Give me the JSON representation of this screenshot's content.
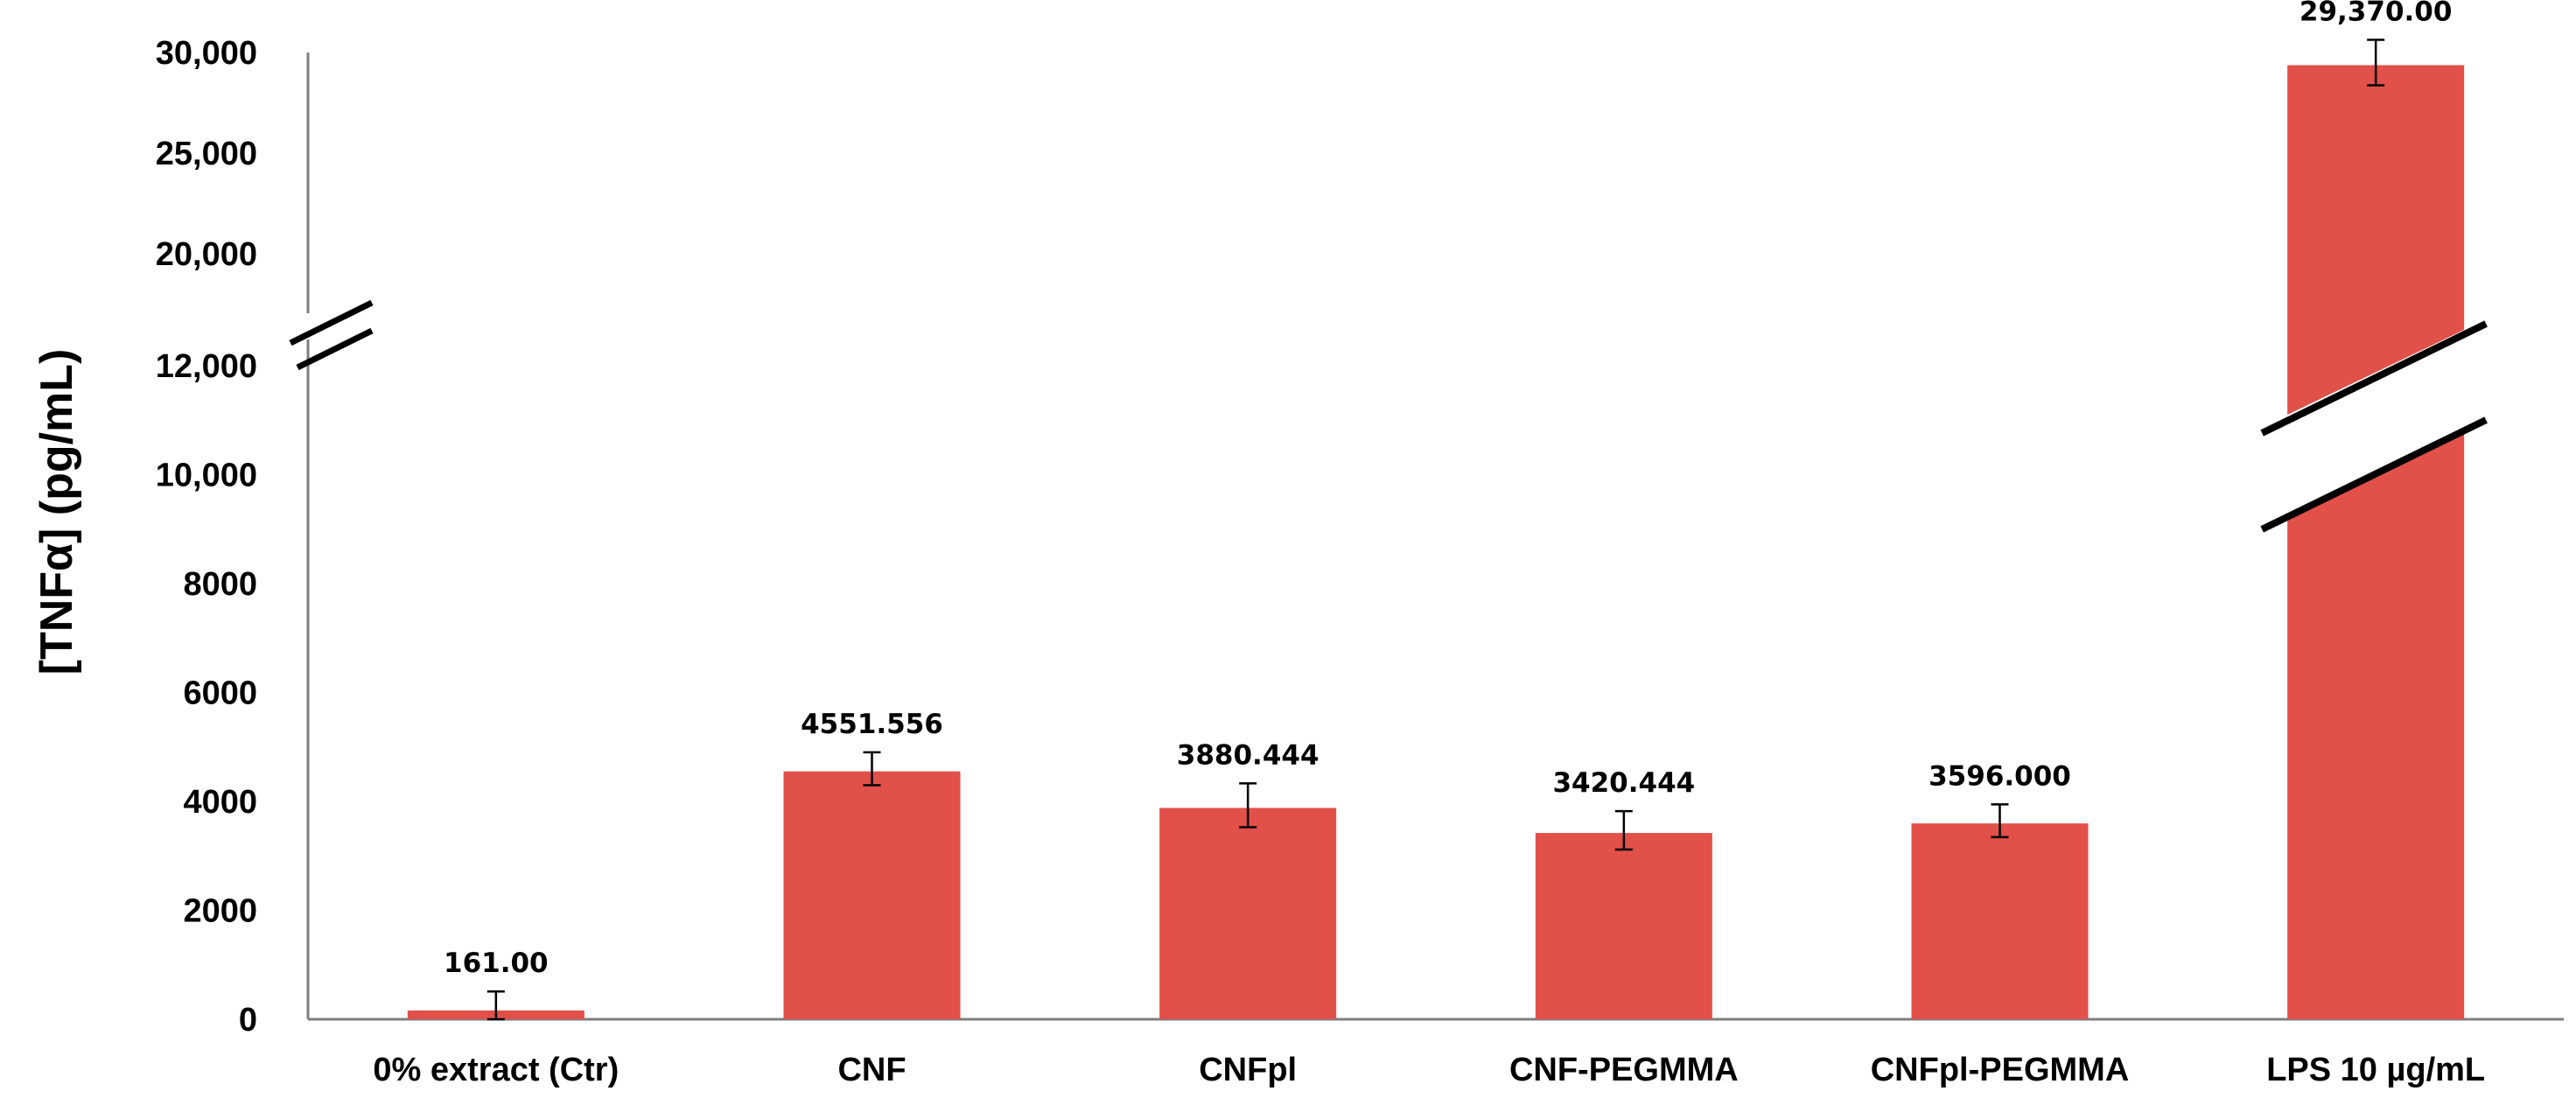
{
  "chart_data": {
    "type": "bar",
    "ylabel": "[TNFα] (pg/mL)",
    "categories": [
      "0% extract (Ctr)",
      "CNF",
      "CNFpl",
      "CNF-PEGMMA",
      "CNFpl-PEGMMA",
      "LPS 10 µg/mL"
    ],
    "values": [
      161,
      4551.556,
      3880.444,
      3420.444,
      3596,
      29370
    ],
    "value_labels": [
      "161.00",
      "4551.556",
      "3880.444",
      "3420.444",
      "3596.000",
      "29,370.00"
    ],
    "error": [
      250,
      250,
      450,
      350,
      250,
      1300
    ],
    "bar_color": "#E2504A",
    "axis_break": {
      "lower_range": [
        0,
        12000
      ],
      "upper_range": [
        20000,
        30000
      ]
    },
    "y_ticks": [
      {
        "value": 0,
        "label": "0"
      },
      {
        "value": 2000,
        "label": "2000"
      },
      {
        "value": 4000,
        "label": "4000"
      },
      {
        "value": 6000,
        "label": "6000"
      },
      {
        "value": 8000,
        "label": "8000"
      },
      {
        "value": 10000,
        "label": "10,000"
      },
      {
        "value": 12000,
        "label": "12,000"
      },
      {
        "value": 20000,
        "label": "20,000"
      },
      {
        "value": 25000,
        "label": "25,000"
      },
      {
        "value": 30000,
        "label": "30,000"
      }
    ],
    "grid": false,
    "legend": "none"
  }
}
